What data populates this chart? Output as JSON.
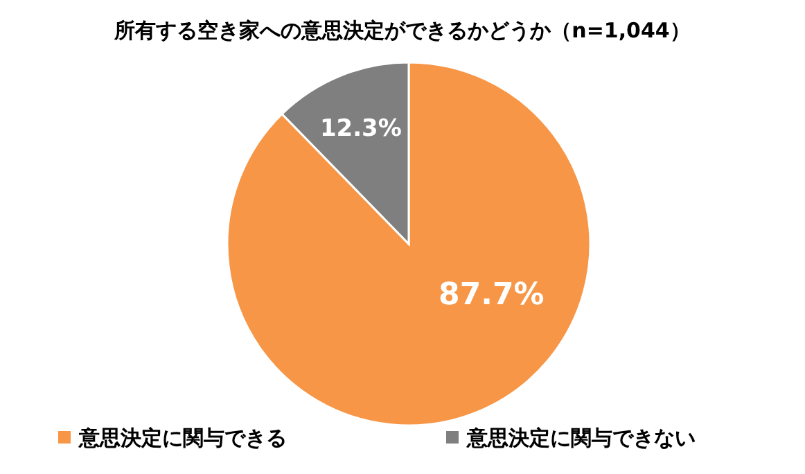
{
  "chart_data": {
    "type": "pie",
    "title": "所有する空き家への意思決定ができるかどうか（n=1,044）",
    "categories": [
      "意思決定に関与できる",
      "意思決定に関与できない"
    ],
    "values": [
      87.7,
      12.3
    ],
    "colors": [
      "#f79646",
      "#7f7f7f"
    ],
    "value_labels": [
      "87.7%",
      "12.3%"
    ],
    "legend": "bottom"
  }
}
